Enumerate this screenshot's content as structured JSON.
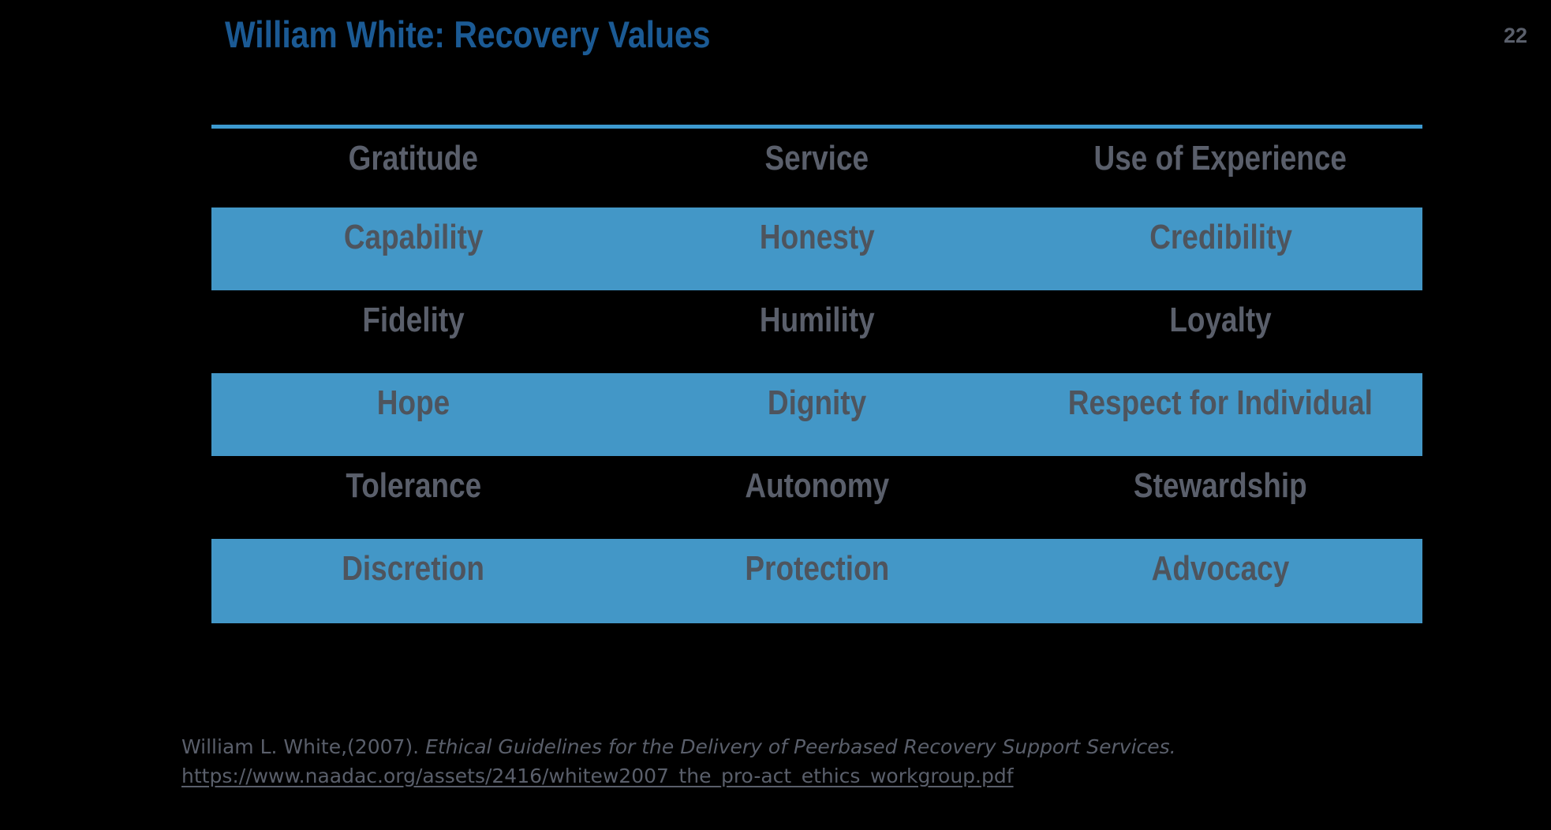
{
  "slide": {
    "title": "William White: Recovery Values",
    "page_number": "22",
    "colors": {
      "background": "#000000",
      "title_blue": "#1B5A94",
      "accent_blue": "#4397C7",
      "line_blue": "#3D9AD0",
      "text_gray": "#5A5F6B",
      "text_gray_on_blue": "#4E545D"
    }
  },
  "table": {
    "rows": [
      {
        "highlighted": false,
        "cells": [
          "Gratitude",
          "Service",
          "Use of Experience"
        ]
      },
      {
        "highlighted": true,
        "cells": [
          "Capability",
          "Honesty",
          "Credibility"
        ]
      },
      {
        "highlighted": false,
        "cells": [
          "Fidelity",
          "Humility",
          "Loyalty"
        ]
      },
      {
        "highlighted": true,
        "cells": [
          "Hope",
          "Dignity",
          "Respect for Individual"
        ]
      },
      {
        "highlighted": false,
        "cells": [
          "Tolerance",
          "Autonomy",
          "Stewardship"
        ]
      },
      {
        "highlighted": true,
        "cells": [
          "Discretion",
          "Protection",
          "Advocacy"
        ]
      }
    ]
  },
  "citation": {
    "author_part": "William L. White,(2007). ",
    "work_title_italic": "Ethical Guidelines for the Delivery of Peerbased Recovery Support Services.",
    "link_text": "https://www.naadac.org/assets/2416/whitew2007_the_pro-act_ethics_workgroup.pdf"
  }
}
